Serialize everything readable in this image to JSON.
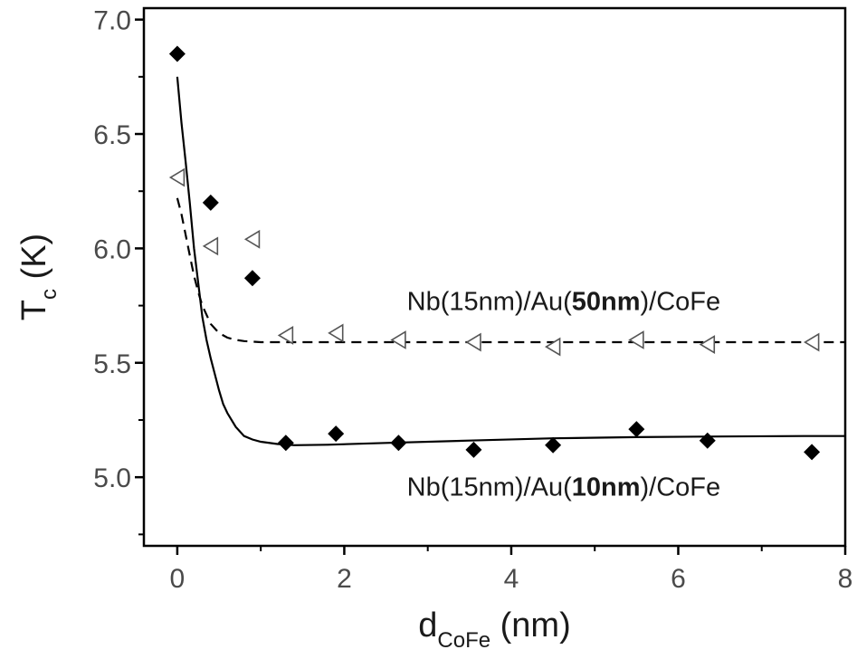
{
  "chart_data": {
    "type": "scatter",
    "xlabel": {
      "main": "d",
      "sub": "CoFe",
      "unit": " (nm)"
    },
    "ylabel": {
      "main": "T",
      "sub": "c",
      "unit": " (K)"
    },
    "xlim": [
      -0.4,
      8
    ],
    "ylim": [
      4.7,
      7.05
    ],
    "xticks": [
      0,
      2,
      4,
      6,
      8
    ],
    "yticks": [
      5.0,
      5.5,
      6.0,
      6.5,
      7.0
    ],
    "x_tick_labels": [
      "0",
      "2",
      "4",
      "6",
      "8"
    ],
    "y_tick_labels": [
      "5.0",
      "5.5",
      "6.0",
      "6.5",
      "7.0"
    ],
    "grid": false,
    "annotations": [
      {
        "parts": [
          {
            "text": "Nb(15nm)/Au(",
            "bold": false
          },
          {
            "text": "50nm",
            "bold": true
          },
          {
            "text": ")/CoFe",
            "bold": false
          }
        ],
        "x": 2.75,
        "y": 5.73
      },
      {
        "parts": [
          {
            "text": "Nb(15nm)/Au(",
            "bold": false
          },
          {
            "text": "10nm",
            "bold": true
          },
          {
            "text": ")/CoFe",
            "bold": false
          }
        ],
        "x": 2.75,
        "y": 4.92
      }
    ],
    "series": [
      {
        "marker": "filled-diamond",
        "color": "#000000",
        "x": [
          0.0,
          0.4,
          0.9,
          1.3,
          1.9,
          2.65,
          3.55,
          4.5,
          5.5,
          6.35,
          7.6
        ],
        "y": [
          6.85,
          6.2,
          5.87,
          5.15,
          5.19,
          5.15,
          5.12,
          5.14,
          5.21,
          5.16,
          5.11
        ]
      },
      {
        "marker": "open-left-triangle",
        "color": "#555555",
        "x": [
          0.0,
          0.4,
          0.9,
          1.3,
          1.9,
          2.65,
          3.55,
          4.5,
          5.5,
          6.35,
          7.6
        ],
        "y": [
          6.31,
          6.01,
          6.04,
          5.62,
          5.63,
          5.6,
          5.59,
          5.57,
          5.6,
          5.58,
          5.59
        ]
      }
    ],
    "fit_curves": [
      {
        "style": "solid",
        "color": "#000000",
        "x": [
          0.0,
          0.05,
          0.1,
          0.15,
          0.2,
          0.25,
          0.3,
          0.35,
          0.4,
          0.45,
          0.5,
          0.55,
          0.6,
          0.7,
          0.8,
          0.9,
          1.0,
          1.2,
          1.4,
          1.8,
          2.5,
          3.5,
          4.5,
          5.5,
          6.5,
          7.5,
          8.0
        ],
        "y": [
          6.75,
          6.55,
          6.38,
          6.2,
          6.0,
          5.85,
          5.7,
          5.6,
          5.52,
          5.45,
          5.38,
          5.32,
          5.28,
          5.22,
          5.18,
          5.165,
          5.155,
          5.145,
          5.14,
          5.142,
          5.15,
          5.16,
          5.17,
          5.175,
          5.178,
          5.18,
          5.18
        ]
      },
      {
        "style": "dashed",
        "color": "#000000",
        "x": [
          0.0,
          0.05,
          0.1,
          0.15,
          0.2,
          0.25,
          0.3,
          0.35,
          0.4,
          0.45,
          0.5,
          0.6,
          0.7,
          0.8,
          1.0,
          1.3,
          2.0,
          3.0,
          4.0,
          5.0,
          6.0,
          7.0,
          8.0
        ],
        "y": [
          6.22,
          6.15,
          6.06,
          5.97,
          5.88,
          5.81,
          5.75,
          5.71,
          5.67,
          5.65,
          5.63,
          5.61,
          5.6,
          5.595,
          5.59,
          5.59,
          5.59,
          5.59,
          5.59,
          5.59,
          5.59,
          5.59,
          5.59
        ]
      }
    ]
  }
}
